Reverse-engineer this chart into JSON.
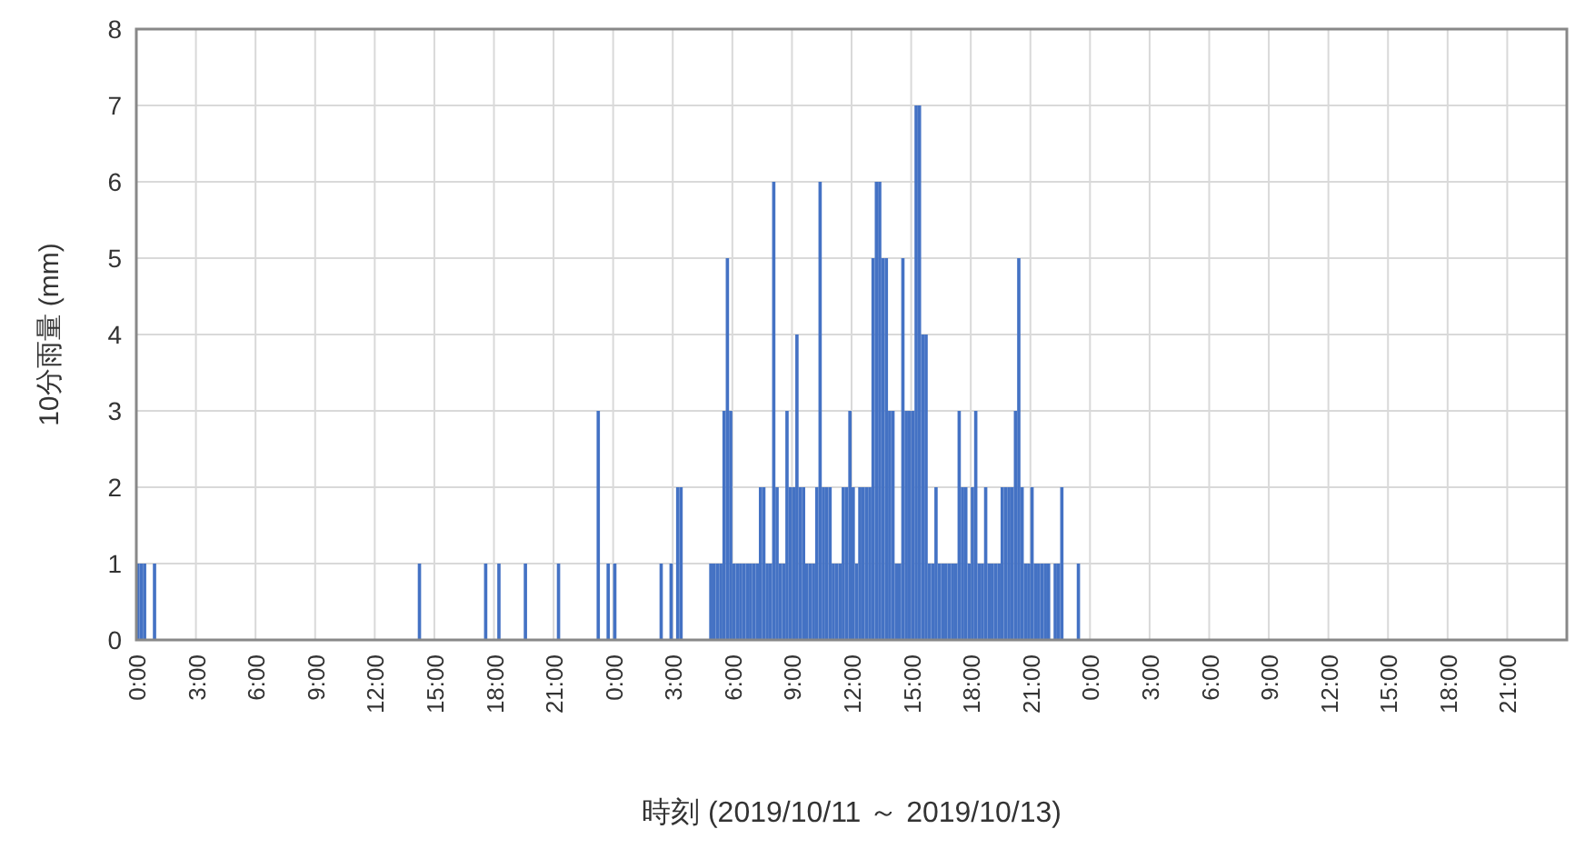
{
  "chart_data": {
    "type": "bar",
    "xlabel": "時刻 (2019/10/11 ～ 2019/10/13)",
    "ylabel": "10分雨量 (mm)",
    "color": "#4472c4",
    "grid": true,
    "xlim": [
      "2019-10-11T00:00",
      "2019-10-14T00:00"
    ],
    "ylim": [
      0,
      8
    ],
    "yticks": [
      0,
      1,
      2,
      3,
      4,
      5,
      6,
      7,
      8
    ],
    "xticks": [
      {
        "value": "2019-10-11T00:00",
        "label": "0:00"
      },
      {
        "value": "2019-10-11T03:00",
        "label": "3:00"
      },
      {
        "value": "2019-10-11T06:00",
        "label": "6:00"
      },
      {
        "value": "2019-10-11T09:00",
        "label": "9:00"
      },
      {
        "value": "2019-10-11T12:00",
        "label": "12:00"
      },
      {
        "value": "2019-10-11T15:00",
        "label": "15:00"
      },
      {
        "value": "2019-10-11T18:00",
        "label": "18:00"
      },
      {
        "value": "2019-10-11T21:00",
        "label": "21:00"
      },
      {
        "value": "2019-10-12T00:00",
        "label": "0:00"
      },
      {
        "value": "2019-10-12T03:00",
        "label": "3:00"
      },
      {
        "value": "2019-10-12T06:00",
        "label": "6:00"
      },
      {
        "value": "2019-10-12T09:00",
        "label": "9:00"
      },
      {
        "value": "2019-10-12T12:00",
        "label": "12:00"
      },
      {
        "value": "2019-10-12T15:00",
        "label": "15:00"
      },
      {
        "value": "2019-10-12T18:00",
        "label": "18:00"
      },
      {
        "value": "2019-10-12T21:00",
        "label": "21:00"
      },
      {
        "value": "2019-10-13T00:00",
        "label": "0:00"
      },
      {
        "value": "2019-10-13T03:00",
        "label": "3:00"
      },
      {
        "value": "2019-10-13T06:00",
        "label": "6:00"
      },
      {
        "value": "2019-10-13T09:00",
        "label": "9:00"
      },
      {
        "value": "2019-10-13T12:00",
        "label": "12:00"
      },
      {
        "value": "2019-10-13T15:00",
        "label": "15:00"
      },
      {
        "value": "2019-10-13T18:00",
        "label": "18:00"
      },
      {
        "value": "2019-10-13T21:00",
        "label": "21:00"
      }
    ],
    "x": [
      "2019-10-11T00:00",
      "2019-10-11T00:10",
      "2019-10-11T00:20",
      "2019-10-11T00:50",
      "2019-10-11T14:10",
      "2019-10-11T17:30",
      "2019-10-11T18:10",
      "2019-10-11T19:30",
      "2019-10-11T21:10",
      "2019-10-11T23:10",
      "2019-10-11T23:40",
      "2019-10-12T00:00",
      "2019-10-12T02:20",
      "2019-10-12T02:50",
      "2019-10-12T03:10",
      "2019-10-12T03:20",
      "2019-10-12T04:50",
      "2019-10-12T05:00",
      "2019-10-12T05:10",
      "2019-10-12T05:20",
      "2019-10-12T05:30",
      "2019-10-12T05:40",
      "2019-10-12T05:50",
      "2019-10-12T06:00",
      "2019-10-12T06:10",
      "2019-10-12T06:20",
      "2019-10-12T06:30",
      "2019-10-12T06:40",
      "2019-10-12T06:50",
      "2019-10-12T07:00",
      "2019-10-12T07:10",
      "2019-10-12T07:20",
      "2019-10-12T07:30",
      "2019-10-12T07:40",
      "2019-10-12T07:50",
      "2019-10-12T08:00",
      "2019-10-12T08:10",
      "2019-10-12T08:20",
      "2019-10-12T08:30",
      "2019-10-12T08:40",
      "2019-10-12T08:50",
      "2019-10-12T09:00",
      "2019-10-12T09:10",
      "2019-10-12T09:20",
      "2019-10-12T09:30",
      "2019-10-12T09:40",
      "2019-10-12T09:50",
      "2019-10-12T10:00",
      "2019-10-12T10:10",
      "2019-10-12T10:20",
      "2019-10-12T10:30",
      "2019-10-12T10:40",
      "2019-10-12T10:50",
      "2019-10-12T11:00",
      "2019-10-12T11:10",
      "2019-10-12T11:20",
      "2019-10-12T11:30",
      "2019-10-12T11:40",
      "2019-10-12T11:50",
      "2019-10-12T12:00",
      "2019-10-12T12:10",
      "2019-10-12T12:20",
      "2019-10-12T12:30",
      "2019-10-12T12:40",
      "2019-10-12T12:50",
      "2019-10-12T13:00",
      "2019-10-12T13:10",
      "2019-10-12T13:20",
      "2019-10-12T13:30",
      "2019-10-12T13:40",
      "2019-10-12T13:50",
      "2019-10-12T14:00",
      "2019-10-12T14:10",
      "2019-10-12T14:20",
      "2019-10-12T14:30",
      "2019-10-12T14:40",
      "2019-10-12T14:50",
      "2019-10-12T15:00",
      "2019-10-12T15:10",
      "2019-10-12T15:20",
      "2019-10-12T15:30",
      "2019-10-12T15:40",
      "2019-10-12T15:50",
      "2019-10-12T16:00",
      "2019-10-12T16:10",
      "2019-10-12T16:20",
      "2019-10-12T16:30",
      "2019-10-12T16:40",
      "2019-10-12T16:50",
      "2019-10-12T17:00",
      "2019-10-12T17:10",
      "2019-10-12T17:20",
      "2019-10-12T17:30",
      "2019-10-12T17:40",
      "2019-10-12T17:50",
      "2019-10-12T18:00",
      "2019-10-12T18:10",
      "2019-10-12T18:20",
      "2019-10-12T18:30",
      "2019-10-12T18:40",
      "2019-10-12T18:50",
      "2019-10-12T19:00",
      "2019-10-12T19:10",
      "2019-10-12T19:20",
      "2019-10-12T19:30",
      "2019-10-12T19:40",
      "2019-10-12T19:50",
      "2019-10-12T20:00",
      "2019-10-12T20:10",
      "2019-10-12T20:20",
      "2019-10-12T20:30",
      "2019-10-12T20:40",
      "2019-10-12T20:50",
      "2019-10-12T21:00",
      "2019-10-12T21:10",
      "2019-10-12T21:20",
      "2019-10-12T21:30",
      "2019-10-12T21:40",
      "2019-10-12T21:50",
      "2019-10-12T22:10",
      "2019-10-12T22:20",
      "2019-10-12T22:30",
      "2019-10-12T23:20"
    ],
    "values": [
      1,
      1,
      1,
      1,
      1,
      1,
      1,
      1,
      1,
      3,
      1,
      1,
      1,
      1,
      2,
      2,
      1,
      1,
      1,
      1,
      3,
      5,
      3,
      1,
      1,
      1,
      1,
      1,
      1,
      1,
      1,
      2,
      2,
      1,
      1,
      6,
      2,
      1,
      1,
      3,
      2,
      2,
      4,
      2,
      2,
      1,
      1,
      1,
      2,
      6,
      2,
      2,
      2,
      1,
      1,
      1,
      2,
      2,
      3,
      2,
      1,
      2,
      2,
      2,
      2,
      5,
      6,
      6,
      5,
      5,
      3,
      3,
      1,
      1,
      5,
      3,
      3,
      3,
      7,
      7,
      4,
      4,
      1,
      1,
      2,
      1,
      1,
      1,
      1,
      1,
      1,
      3,
      2,
      2,
      1,
      2,
      3,
      1,
      1,
      2,
      1,
      1,
      1,
      1,
      2,
      2,
      2,
      2,
      3,
      5,
      2,
      1,
      1,
      2,
      1,
      1,
      1,
      1,
      1,
      1,
      1,
      2,
      1
    ]
  }
}
